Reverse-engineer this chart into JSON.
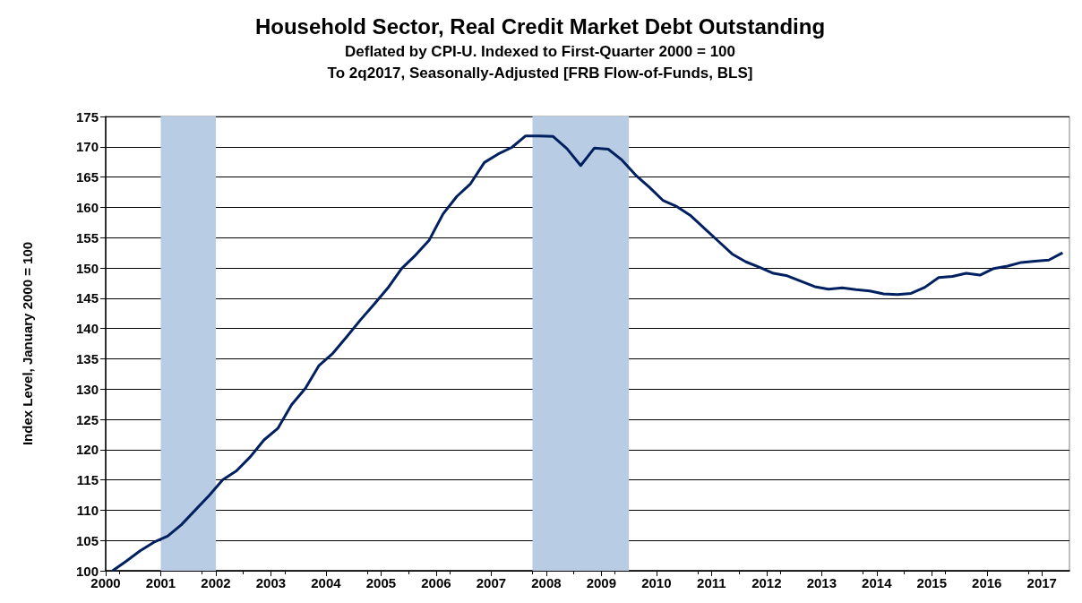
{
  "chart_data": {
    "type": "line",
    "title": "Household Sector, Real Credit Market Debt Outstanding",
    "subtitle": "Deflated by CPI-U. Indexed to First-Quarter 2000 = 100\nTo 2q2017, Seasonally-Adjusted [FRB Flow-of-Funds, BLS]",
    "ylabel": "Index Level, January 2000 = 100",
    "x": [
      2000.125,
      2000.375,
      2000.625,
      2000.875,
      2001.125,
      2001.375,
      2001.625,
      2001.875,
      2002.125,
      2002.375,
      2002.625,
      2002.875,
      2003.125,
      2003.375,
      2003.625,
      2003.875,
      2004.125,
      2004.375,
      2004.625,
      2004.875,
      2005.125,
      2005.375,
      2005.625,
      2005.875,
      2006.125,
      2006.375,
      2006.625,
      2006.875,
      2007.125,
      2007.375,
      2007.625,
      2007.875,
      2008.125,
      2008.375,
      2008.625,
      2008.875,
      2009.125,
      2009.375,
      2009.625,
      2009.875,
      2010.125,
      2010.375,
      2010.625,
      2010.875,
      2011.125,
      2011.375,
      2011.625,
      2011.875,
      2012.125,
      2012.375,
      2012.625,
      2012.875,
      2013.125,
      2013.375,
      2013.625,
      2013.875,
      2014.125,
      2014.375,
      2014.625,
      2014.875,
      2015.125,
      2015.375,
      2015.625,
      2015.875,
      2016.125,
      2016.375,
      2016.625,
      2016.875,
      2017.125,
      2017.375
    ],
    "series": [
      {
        "color": "#002060",
        "values": [
          100,
          101.6,
          103.3,
          104.7,
          105.7,
          107.6,
          110.0,
          112.4,
          115.0,
          116.5,
          118.8,
          121.6,
          123.5,
          127.4,
          130.1,
          133.9,
          135.9,
          138.6,
          141.4,
          144.0,
          146.7,
          149.9,
          152.1,
          154.6,
          158.9,
          161.8,
          163.9,
          167.4,
          168.8,
          169.9,
          171.8,
          171.8,
          171.7,
          169.7,
          166.9,
          169.8,
          169.6,
          167.8,
          165.3,
          163.3,
          161.1,
          160.1,
          158.6,
          156.5,
          154.4,
          152.3,
          151.0,
          150.1,
          149.1,
          148.7,
          147.8,
          146.9,
          146.5,
          146.7,
          146.4,
          146.2,
          145.7,
          145.6,
          145.8,
          146.8,
          148.4,
          148.6,
          149.1,
          148.8,
          149.9,
          150.3,
          150.9,
          151.1,
          151.3,
          152.5
        ]
      }
    ],
    "xlim": [
      2000,
      2017.5
    ],
    "xticks": [
      2000,
      2001,
      2002,
      2003,
      2004,
      2005,
      2006,
      2007,
      2008,
      2009,
      2010,
      2011,
      2012,
      2013,
      2014,
      2015,
      2016,
      2017
    ],
    "ylim": [
      100,
      175
    ],
    "yticks": [
      100,
      105,
      110,
      115,
      120,
      125,
      130,
      135,
      140,
      145,
      150,
      155,
      160,
      165,
      170,
      175
    ],
    "bands": [
      {
        "axis": "x",
        "from": 2001.0,
        "to": 2002.0,
        "color": "#b8cce4"
      },
      {
        "axis": "x",
        "from": 2007.75,
        "to": 2009.5,
        "color": "#b8cce4"
      }
    ],
    "grid": "y",
    "marker": "none",
    "line_style": "solid"
  }
}
